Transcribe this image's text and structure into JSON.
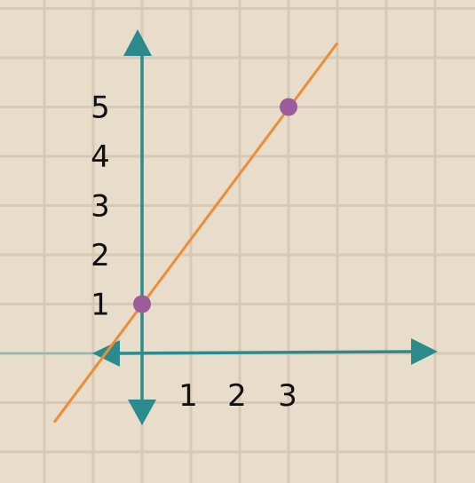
{
  "colors": {
    "background": "#e8dccb",
    "grid": "#d8c9b4",
    "axis": "#2b8b8c",
    "line": "#ef8d35",
    "point": "#9c5c9c",
    "label": "#111111"
  },
  "chart_data": {
    "type": "line",
    "title": "",
    "xlabel": "",
    "ylabel": "",
    "xlim": [
      -3,
      6.3
    ],
    "ylim": [
      -1.3,
      7
    ],
    "grid": true,
    "x_ticks": [
      "1",
      "2",
      "3"
    ],
    "y_ticks": [
      "1",
      "2",
      "3",
      "4",
      "5"
    ],
    "series": [
      {
        "x": [
          -1.8,
          4.0
        ],
        "y": [
          -1.4,
          6.3
        ]
      }
    ],
    "points": [
      {
        "x": 0,
        "y": 1
      },
      {
        "x": 3,
        "y": 5
      }
    ]
  }
}
